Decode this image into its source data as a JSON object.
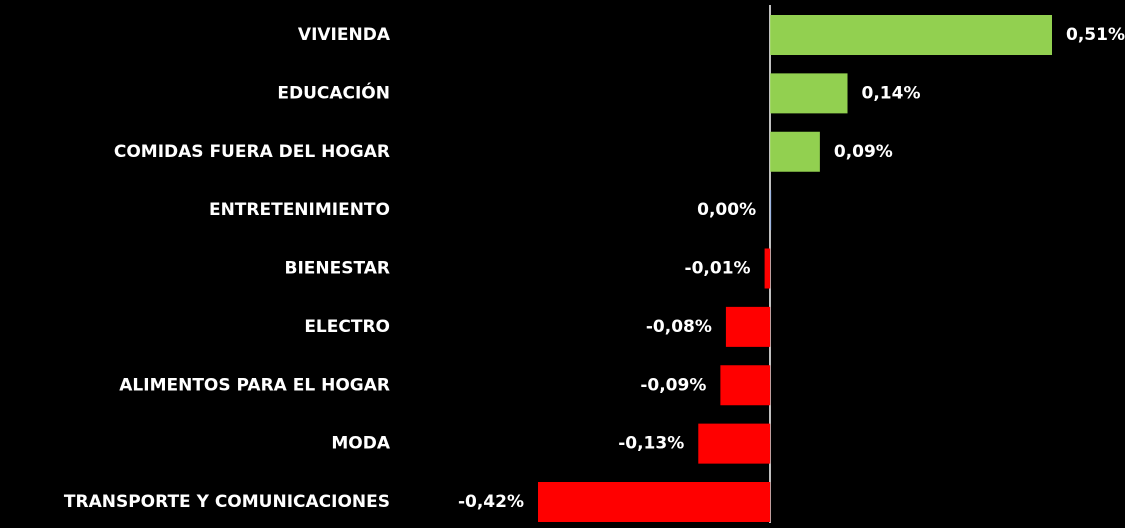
{
  "chart_data": {
    "type": "bar",
    "orientation": "horizontal",
    "categories": [
      "VIVIENDA",
      "EDUCACIÓN",
      "COMIDAS FUERA DEL HOGAR",
      "ENTRETENIMIENTO",
      "BIENESTAR",
      "ELECTRO",
      "ALIMENTOS PARA EL HOGAR",
      "MODA",
      "TRANSPORTE Y COMUNICACIONES"
    ],
    "values": [
      0.51,
      0.14,
      0.09,
      0.0,
      -0.01,
      -0.08,
      -0.09,
      -0.13,
      -0.42
    ],
    "value_labels": [
      "0,51%",
      "0,14%",
      "0,09%",
      "0,00%",
      "-0,01%",
      "-0,08%",
      "-0,09%",
      "-0,13%",
      "-0,42%"
    ],
    "positive_color": "#92d050",
    "negative_color": "#ff0000"
  }
}
